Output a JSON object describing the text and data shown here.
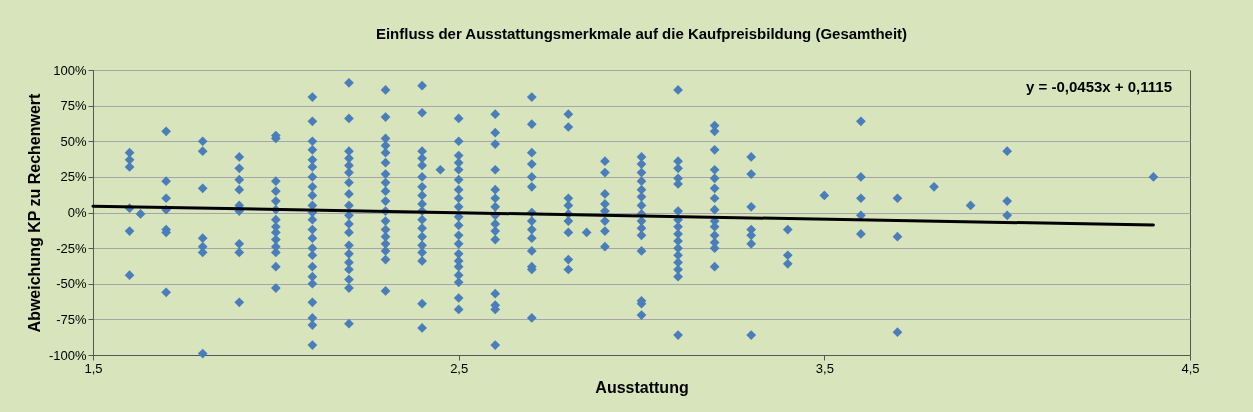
{
  "chart_data": {
    "type": "scatter",
    "title": "Einfluss der Ausstattungsmerkmale auf die Kaufpreisbildung (Gesamtheit)",
    "xlabel": "Ausstattung",
    "ylabel": "Abweichung KP zu Rechenwert",
    "xlim": [
      1.5,
      4.5
    ],
    "xticks": [
      {
        "value": 1.5,
        "label": "1,5"
      },
      {
        "value": 2.5,
        "label": "2,5"
      },
      {
        "value": 3.5,
        "label": "3,5"
      },
      {
        "value": 4.5,
        "label": "4,5"
      }
    ],
    "ylim": [
      -100,
      100
    ],
    "yticks": [
      {
        "value": -100,
        "label": "-100%"
      },
      {
        "value": -75,
        "label": "-75%"
      },
      {
        "value": -50,
        "label": "-50%"
      },
      {
        "value": -25,
        "label": "-25%"
      },
      {
        "value": 0,
        "label": "0%"
      },
      {
        "value": 25,
        "label": "25%"
      },
      {
        "value": 50,
        "label": "50%"
      },
      {
        "value": 75,
        "label": "75%"
      },
      {
        "value": 100,
        "label": "100%"
      }
    ],
    "grid": "y",
    "marker": "diamond",
    "annotations": [
      "y = -0,0453x + 0,1115"
    ],
    "series": [
      {
        "color": "#4a7ebb",
        "x": [
          1.6,
          1.6,
          1.6,
          1.6,
          1.6,
          1.6,
          1.63,
          1.7,
          1.7,
          1.7,
          1.7,
          1.7,
          1.7,
          1.7,
          1.8,
          1.8,
          1.8,
          1.8,
          1.8,
          1.8,
          1.8,
          1.9,
          1.9,
          1.9,
          1.9,
          1.9,
          1.9,
          1.9,
          1.9,
          1.9,
          2.0,
          2.0,
          2.0,
          2.0,
          2.0,
          2.0,
          2.0,
          2.0,
          2.0,
          2.0,
          2.0,
          2.0,
          2.0,
          2.0,
          2.1,
          2.1,
          2.1,
          2.1,
          2.1,
          2.1,
          2.1,
          2.1,
          2.1,
          2.1,
          2.1,
          2.1,
          2.1,
          2.1,
          2.1,
          2.1,
          2.1,
          2.1,
          2.1,
          2.1,
          2.1,
          2.1,
          2.1,
          2.2,
          2.2,
          2.2,
          2.2,
          2.2,
          2.2,
          2.2,
          2.2,
          2.2,
          2.2,
          2.2,
          2.2,
          2.2,
          2.2,
          2.2,
          2.2,
          2.2,
          2.2,
          2.2,
          2.3,
          2.3,
          2.3,
          2.3,
          2.3,
          2.3,
          2.3,
          2.3,
          2.3,
          2.3,
          2.3,
          2.3,
          2.3,
          2.3,
          2.3,
          2.3,
          2.3,
          2.3,
          2.4,
          2.4,
          2.4,
          2.4,
          2.4,
          2.4,
          2.4,
          2.4,
          2.4,
          2.4,
          2.4,
          2.4,
          2.4,
          2.4,
          2.4,
          2.4,
          2.4,
          2.4,
          2.45,
          2.5,
          2.5,
          2.5,
          2.5,
          2.5,
          2.5,
          2.5,
          2.5,
          2.5,
          2.5,
          2.5,
          2.5,
          2.5,
          2.5,
          2.5,
          2.5,
          2.5,
          2.5,
          2.5,
          2.5,
          2.6,
          2.6,
          2.6,
          2.6,
          2.6,
          2.6,
          2.6,
          2.6,
          2.6,
          2.6,
          2.6,
          2.6,
          2.6,
          2.6,
          2.6,
          2.7,
          2.7,
          2.7,
          2.7,
          2.7,
          2.7,
          2.7,
          2.7,
          2.7,
          2.7,
          2.7,
          2.7,
          2.7,
          2.7,
          2.8,
          2.8,
          2.8,
          2.8,
          2.8,
          2.8,
          2.8,
          2.8,
          2.8,
          2.85,
          2.9,
          2.9,
          2.9,
          2.9,
          2.9,
          2.9,
          2.9,
          2.9,
          3.0,
          3.0,
          3.0,
          3.0,
          3.0,
          3.0,
          3.0,
          3.0,
          3.0,
          3.0,
          3.0,
          3.0,
          3.0,
          3.0,
          3.0,
          3.1,
          3.1,
          3.1,
          3.1,
          3.1,
          3.1,
          3.1,
          3.1,
          3.1,
          3.1,
          3.1,
          3.1,
          3.1,
          3.1,
          3.1,
          3.1,
          3.2,
          3.2,
          3.2,
          3.2,
          3.2,
          3.2,
          3.2,
          3.2,
          3.2,
          3.2,
          3.2,
          3.2,
          3.2,
          3.2,
          3.3,
          3.3,
          3.3,
          3.3,
          3.3,
          3.3,
          3.3,
          3.4,
          3.4,
          3.4,
          3.5,
          3.6,
          3.6,
          3.6,
          3.6,
          3.6,
          3.7,
          3.7,
          3.7,
          3.8,
          3.9,
          4.0,
          4.0,
          4.0,
          4.4
        ],
        "values": [
          42,
          37,
          32,
          3,
          -13,
          -44,
          -1,
          57,
          22,
          10,
          2,
          -12,
          -14,
          -56,
          50,
          43,
          17,
          -18,
          -24,
          -28,
          -99,
          39,
          31,
          23,
          16,
          5,
          1,
          -22,
          -28,
          -63,
          54,
          52,
          22,
          15,
          8,
          2,
          -5,
          -10,
          -14,
          -19,
          -24,
          -28,
          -38,
          -53,
          81,
          64,
          50,
          44,
          37,
          32,
          25,
          18,
          12,
          5,
          0,
          -5,
          -12,
          -18,
          -25,
          -30,
          -38,
          -45,
          -50,
          -63,
          -74,
          -79,
          -93,
          91,
          66,
          43,
          38,
          33,
          28,
          21,
          13,
          5,
          -2,
          -8,
          -14,
          -23,
          -29,
          -35,
          -40,
          -47,
          -53,
          -78,
          86,
          67,
          52,
          47,
          42,
          35,
          27,
          21,
          15,
          8,
          1,
          -6,
          -12,
          -17,
          -22,
          -27,
          -33,
          -55,
          89,
          70,
          43,
          38,
          33,
          25,
          18,
          12,
          6,
          1,
          -5,
          -11,
          -17,
          -23,
          -28,
          -34,
          -64,
          -81,
          30,
          66,
          50,
          40,
          35,
          30,
          23,
          16,
          10,
          4,
          -3,
          -9,
          -16,
          -22,
          -29,
          -34,
          -38,
          -44,
          -49,
          -60,
          -68,
          69,
          56,
          48,
          30,
          16,
          10,
          4,
          -2,
          -8,
          -13,
          -19,
          -57,
          -65,
          -68,
          -93,
          81,
          62,
          42,
          34,
          25,
          18,
          0,
          -6,
          -12,
          -18,
          -27,
          -38,
          -40,
          -74,
          69,
          60,
          10,
          5,
          -1,
          -6,
          -14,
          -33,
          -40,
          -14,
          36,
          28,
          13,
          6,
          1,
          -6,
          -13,
          -24,
          39,
          34,
          28,
          22,
          16,
          11,
          5,
          -1,
          -6,
          -11,
          -16,
          -27,
          -62,
          -64,
          -72,
          86,
          36,
          31,
          24,
          20,
          1,
          -5,
          -10,
          -15,
          -20,
          -25,
          -30,
          -35,
          -40,
          -45,
          -86,
          61,
          57,
          44,
          30,
          24,
          17,
          10,
          2,
          -6,
          -10,
          -16,
          -21,
          -25,
          -38,
          39,
          27,
          4,
          -12,
          -16,
          -22,
          -86,
          -12,
          -30,
          -36,
          12,
          64,
          25,
          10,
          -2,
          -15,
          10,
          -17,
          -84,
          18,
          5,
          43,
          8,
          -2,
          25
        ]
      },
      {
        "type": "line",
        "marker": "none",
        "color": "#000000",
        "x": [
          1.5,
          4.4
        ],
        "values": [
          4.4,
          -8.8
        ]
      }
    ]
  }
}
